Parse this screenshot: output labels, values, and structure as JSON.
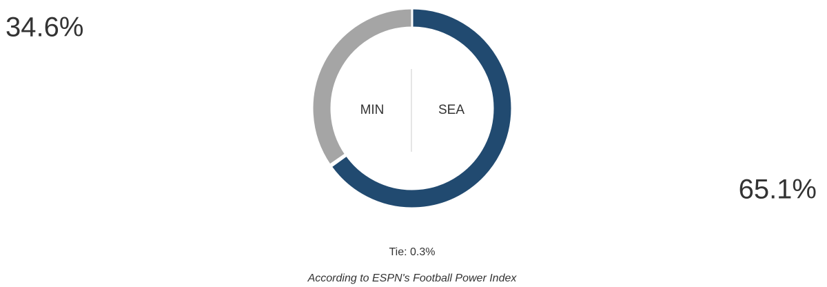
{
  "chart_data": {
    "type": "donut",
    "categories": [
      "MIN",
      "SEA"
    ],
    "values": [
      34.6,
      65.1
    ],
    "value_labels": [
      "34.6%",
      "65.1%"
    ],
    "colors": [
      "#a5a5a5",
      "#214a70"
    ],
    "tie_label": "Tie: 0.3%",
    "source": "According to ESPN's Football Power Index"
  }
}
